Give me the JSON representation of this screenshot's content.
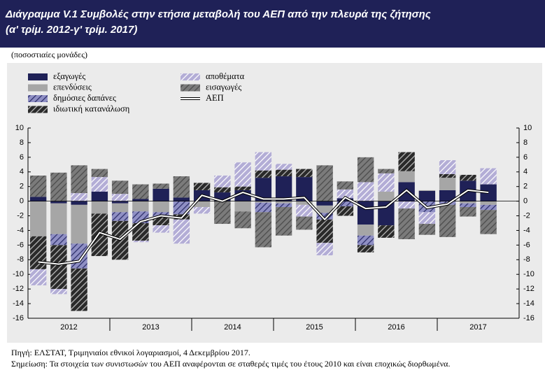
{
  "chart_data": {
    "type": "bar",
    "stacked": true,
    "title": "Διάγραμμα V.1  Συμβολές στην ετήσια μεταβολή του ΑΕΠ από την πλευρά της ζήτησης",
    "subtitle": "(α' τρίμ. 2012-γ' τρίμ. 2017)",
    "y_label": "(ποσοστιαίες μονάδες)",
    "source": "Πηγή:  ΕΛΣΤΑΤ, Τριμηνιαίοι εθνικοί λογαριασμοί, 4 Δεκεμβρίου 2017.",
    "note": "Σημείωση: Τα στοιχεία των συνιστωσών του ΑΕΠ αναφέρονται σε σταθερές τιμές του έτους 2010 και είναι εποχικώς διορθωμένα.",
    "categories": [
      null,
      null,
      null,
      null,
      null,
      null,
      null,
      null,
      null,
      null,
      null,
      null,
      null,
      null,
      null,
      null,
      null,
      null,
      null,
      null,
      null,
      null,
      null
    ],
    "year_labels": [
      "2012",
      "2013",
      "2014",
      "2015",
      "2016",
      "2017"
    ],
    "ylim": [
      -16,
      10
    ],
    "yticks": [
      -16,
      -14,
      -12,
      -10,
      -8,
      -6,
      -4,
      -2,
      0,
      2,
      4,
      6,
      8,
      10
    ],
    "legend": "top-left",
    "series": [
      {
        "name": "εξαγωγές",
        "color": "#1f2157",
        "values": [
          0.6,
          -0.3,
          -0.5,
          1.3,
          -0.3,
          0.3,
          1.7,
          0.5,
          1.5,
          1.2,
          1.5,
          3.2,
          3.4,
          3.3,
          -0.6,
          0.4,
          -3.2,
          -3.3,
          2.6,
          1.4,
          1.5,
          2.8,
          2.3
        ]
      },
      {
        "name": "επενδύσεις",
        "color": "#a6a6a6",
        "values": [
          -4.8,
          -4.2,
          -5.3,
          -1.7,
          -1.2,
          -1.4,
          -1.5,
          0,
          -0.8,
          0,
          -1.4,
          -0.2,
          -0.3,
          -0.5,
          -1.0,
          0,
          -1.5,
          1.3,
          1.5,
          0.1,
          1.7,
          -0.3,
          -0.5
        ]
      },
      {
        "name": "δημόσιες δαπάνες",
        "color": "#8f8fc4",
        "hatch": "#2c2e6a",
        "values": [
          0,
          -1.5,
          -3.4,
          0,
          -1.2,
          -1.6,
          -0.6,
          -1.8,
          0,
          0,
          0,
          -1.3,
          -0.5,
          0,
          -0.9,
          -0.7,
          -1.3,
          0,
          0,
          -1.5,
          -0.5,
          -0.5,
          -0.7
        ]
      },
      {
        "name": "ιδιωτική κατανάλωση",
        "color": "#2a2a2a",
        "hatch": "#bdbdbd",
        "values": [
          -4.5,
          -6.0,
          -5.8,
          -5.8,
          -5.3,
          -2.4,
          -1.2,
          -0.7,
          1.0,
          0.7,
          0.5,
          1.0,
          0.9,
          1.1,
          -3.2,
          -1.3,
          -1.0,
          -1.7,
          2.6,
          0,
          0.5,
          0.8,
          0
        ]
      },
      {
        "name": "αποθέματα",
        "color": "#b3add6",
        "hatch": "#ffffff",
        "values": [
          -2.2,
          -0.7,
          1.1,
          2.0,
          1.0,
          -0.2,
          -1.0,
          -3.3,
          -0.9,
          1.6,
          3.3,
          2.5,
          0.8,
          -1.6,
          -1.7,
          1.2,
          2.6,
          2.5,
          -1.0,
          -1.6,
          1.9,
          0,
          2.2
        ]
      },
      {
        "name": "εισαγωγές",
        "color": "#7b7b7b",
        "hatch": "#4a4a4a",
        "values": [
          2.9,
          3.9,
          3.8,
          1.1,
          1.8,
          2.0,
          0.7,
          2.9,
          0,
          -3.1,
          -2.3,
          -4.8,
          -3.9,
          -1.8,
          4.9,
          1.1,
          3.4,
          0.6,
          -4.2,
          -1.5,
          -4.4,
          -1.3,
          -3.3
        ]
      }
    ],
    "line": {
      "name": "ΑΕΠ",
      "color": "#ffffff",
      "outline": "#000000",
      "values": [
        -8.3,
        -8.6,
        -8.2,
        -4.3,
        -5.2,
        -2.8,
        -2.0,
        -2.3,
        0.8,
        0,
        1.2,
        0.3,
        0.3,
        0.5,
        -2.5,
        0.5,
        -1.0,
        -0.8,
        1.5,
        -0.9,
        -0.4,
        1.5,
        1.2
      ]
    }
  }
}
